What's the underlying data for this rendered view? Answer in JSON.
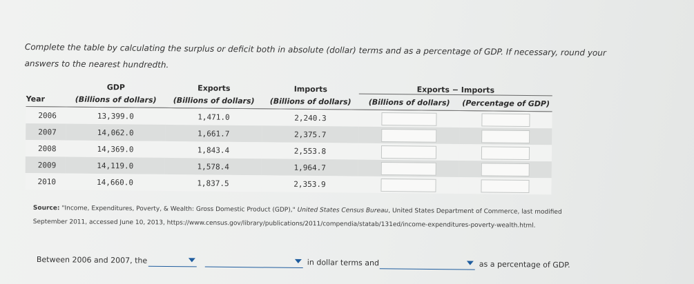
{
  "instructions": "Complete the table by calculating the surplus or deficit both in absolute (dollar) terms and as a percentage of GDP. If necessary, round your answers to the nearest hundredth.",
  "table": {
    "headers": {
      "year": "Year",
      "gdp_top": "GDP",
      "gdp_sub": "(Billions of dollars)",
      "exports_top": "Exports",
      "exports_sub": "(Billions of dollars)",
      "imports_top": "Imports",
      "imports_sub": "(Billions of dollars)",
      "exim_top": "Exports − Imports",
      "exim_dollars": "(Billions of dollars)",
      "exim_pct": "(Percentage of GDP)"
    },
    "rows": [
      {
        "year": "2006",
        "gdp": "13,399.0",
        "exports": "1,471.0",
        "imports": "2,240.3",
        "surplus_dollars": "",
        "surplus_pct": ""
      },
      {
        "year": "2007",
        "gdp": "14,062.0",
        "exports": "1,661.7",
        "imports": "2,375.7",
        "surplus_dollars": "",
        "surplus_pct": ""
      },
      {
        "year": "2008",
        "gdp": "14,369.0",
        "exports": "1,843.4",
        "imports": "2,553.8",
        "surplus_dollars": "",
        "surplus_pct": ""
      },
      {
        "year": "2009",
        "gdp": "14,119.0",
        "exports": "1,578.4",
        "imports": "1,964.7",
        "surplus_dollars": "",
        "surplus_pct": ""
      },
      {
        "year": "2010",
        "gdp": "14,660.0",
        "exports": "1,837.5",
        "imports": "2,353.9",
        "surplus_dollars": "",
        "surplus_pct": ""
      }
    ]
  },
  "source": {
    "label": "Source:",
    "text_a": "\"Income, Expenditures, Poverty, & Wealth: Gross Domestic Product (GDP),\"",
    "publisher": "United States Census Bureau",
    "text_b": ", United States Department of Commerce, last modified September 2011, accessed June 10, 2013, https://www.census.gov/library/publications/2011/compendia/statab/131ed/income-expenditures-poverty-wealth.html."
  },
  "question": {
    "prefix": "Between 2006 and 2007, the",
    "dropdown1_value": "",
    "dropdown2_value": "",
    "middle": "in dollar terms and",
    "dropdown3_value": "",
    "suffix": "as a percentage of GDP."
  }
}
